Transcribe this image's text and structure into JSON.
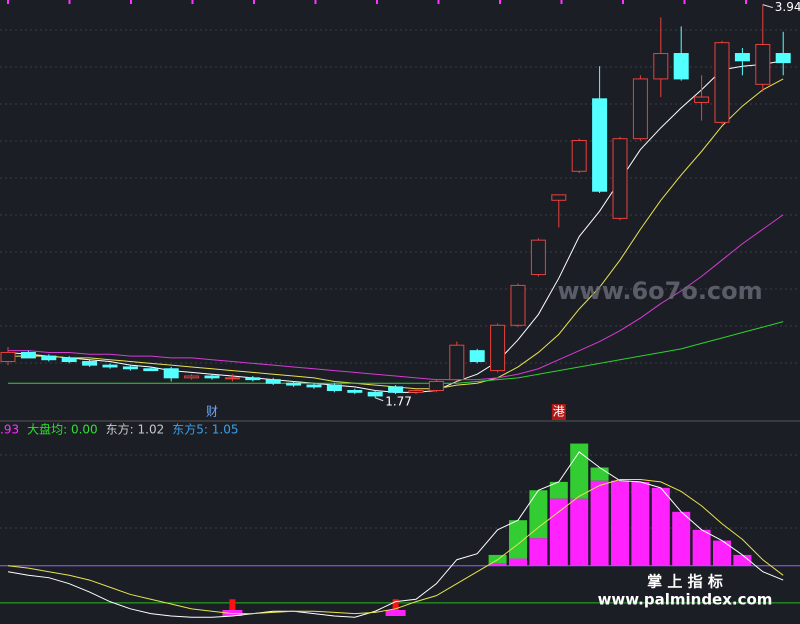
{
  "chart_data": [
    {
      "type": "candlestick",
      "categories": [
        null,
        null,
        null,
        null,
        null,
        null,
        null,
        null,
        null,
        null,
        "财",
        null,
        null,
        null,
        null,
        null,
        null,
        null,
        null,
        null,
        null,
        null,
        null,
        null,
        null,
        null,
        null,
        "港",
        null,
        null,
        null,
        null,
        null,
        null,
        null,
        null,
        null,
        null,
        null
      ],
      "open": [
        1.97,
        2.02,
        2.0,
        1.99,
        1.97,
        1.95,
        1.94,
        1.93,
        1.93,
        1.88,
        1.89,
        1.88,
        1.88,
        1.87,
        1.85,
        1.84,
        1.84,
        1.81,
        1.8,
        1.83,
        1.8,
        1.81,
        1.87,
        2.03,
        1.92,
        2.17,
        2.45,
        2.86,
        3.02,
        3.42,
        2.76,
        3.2,
        3.53,
        3.67,
        3.4,
        3.29,
        3.67,
        3.5,
        3.67
      ],
      "high": [
        2.05,
        2.03,
        2.01,
        2.0,
        1.98,
        1.96,
        1.95,
        1.94,
        1.94,
        1.9,
        1.9,
        1.9,
        1.89,
        1.88,
        1.86,
        1.85,
        1.85,
        1.82,
        1.81,
        1.84,
        1.82,
        1.87,
        2.08,
        2.04,
        2.18,
        2.4,
        2.65,
        2.89,
        3.2,
        3.6,
        3.21,
        3.55,
        3.87,
        3.82,
        3.55,
        3.74,
        3.7,
        3.94,
        3.79
      ],
      "low": [
        1.95,
        1.99,
        1.97,
        1.96,
        1.94,
        1.93,
        1.92,
        1.92,
        1.86,
        1.87,
        1.87,
        1.86,
        1.86,
        1.84,
        1.83,
        1.82,
        1.8,
        1.79,
        1.77,
        1.79,
        1.79,
        1.8,
        1.86,
        1.96,
        1.91,
        2.16,
        2.44,
        2.71,
        3.01,
        2.9,
        2.75,
        3.19,
        3.43,
        3.52,
        3.3,
        3.28,
        3.55,
        3.46,
        3.55
      ],
      "close": [
        2.02,
        1.99,
        1.98,
        1.97,
        1.95,
        1.94,
        1.93,
        1.92,
        1.88,
        1.89,
        1.88,
        1.88,
        1.87,
        1.85,
        1.84,
        1.83,
        1.81,
        1.8,
        1.78,
        1.8,
        1.81,
        1.86,
        2.06,
        1.97,
        2.17,
        2.39,
        2.64,
        2.89,
        3.19,
        2.91,
        3.2,
        3.53,
        3.67,
        3.53,
        3.43,
        3.73,
        3.63,
        3.72,
        3.62
      ],
      "up_color": "#e8413c",
      "down_color": "#54ffff",
      "ylim": [
        1.73,
        3.96
      ],
      "grid": true,
      "max_label": 3.94,
      "min_label": 1.77,
      "series": [
        {
          "color": "#ffffff",
          "values": [
            2.02,
            2.01,
            2.0,
            1.99,
            1.98,
            1.97,
            1.95,
            1.94,
            1.92,
            1.91,
            1.9,
            1.89,
            1.88,
            1.87,
            1.86,
            1.85,
            1.84,
            1.83,
            1.81,
            1.8,
            1.8,
            1.81,
            1.86,
            1.9,
            1.97,
            2.09,
            2.23,
            2.43,
            2.66,
            2.8,
            2.97,
            3.14,
            3.26,
            3.37,
            3.47,
            3.58,
            3.6,
            3.61,
            3.63
          ]
        },
        {
          "color": "#e6e34f",
          "values": [
            2.0,
            2.0,
            2.0,
            1.99,
            1.99,
            1.98,
            1.97,
            1.96,
            1.95,
            1.94,
            1.93,
            1.92,
            1.91,
            1.9,
            1.89,
            1.88,
            1.86,
            1.85,
            1.84,
            1.83,
            1.82,
            1.82,
            1.84,
            1.85,
            1.88,
            1.94,
            2.02,
            2.12,
            2.26,
            2.38,
            2.53,
            2.7,
            2.86,
            3.0,
            3.13,
            3.27,
            3.38,
            3.47,
            3.53
          ]
        },
        {
          "color": "#d43cd4",
          "values": [
            2.03,
            2.03,
            2.02,
            2.02,
            2.01,
            2.01,
            2.0,
            2.0,
            1.99,
            1.99,
            1.98,
            1.97,
            1.96,
            1.95,
            1.94,
            1.93,
            1.92,
            1.91,
            1.9,
            1.89,
            1.88,
            1.87,
            1.87,
            1.87,
            1.88,
            1.9,
            1.93,
            1.98,
            2.03,
            2.08,
            2.14,
            2.21,
            2.29,
            2.36,
            2.44,
            2.53,
            2.62,
            2.7,
            2.78
          ]
        },
        {
          "color": "#2ed02e",
          "values": [
            1.85,
            1.85,
            1.85,
            1.85,
            1.85,
            1.85,
            1.85,
            1.85,
            1.85,
            1.85,
            1.85,
            1.85,
            1.85,
            1.85,
            1.85,
            1.85,
            1.85,
            1.85,
            1.85,
            1.85,
            1.85,
            1.85,
            1.85,
            1.86,
            1.87,
            1.88,
            1.9,
            1.92,
            1.94,
            1.96,
            1.98,
            2.0,
            2.02,
            2.04,
            2.07,
            2.1,
            2.13,
            2.16,
            2.19
          ]
        }
      ]
    },
    {
      "type": "bar",
      "legend": [
        {
          "label": ".93",
          "color": "#ff33ff"
        },
        {
          "label": "大盘均: 0.00",
          "color": "#33dd33"
        },
        {
          "label": "东方: 1.02",
          "color": "#c8c8c8"
        },
        {
          "label": "东方5: 1.05",
          "color": "#3aa0e8"
        }
      ],
      "ylim": [
        -0.47,
        1.2
      ],
      "grid": true,
      "reference_lines": [
        {
          "value": 0,
          "color": "#9a5cff"
        },
        {
          "value": -0.31,
          "color": "#22bb22"
        }
      ],
      "series": [
        {
          "color": "#ff22ff",
          "values": [
            null,
            null,
            null,
            null,
            null,
            null,
            null,
            null,
            null,
            null,
            null,
            null,
            null,
            null,
            null,
            null,
            null,
            null,
            null,
            null,
            null,
            null,
            null,
            null,
            0.02,
            0.06,
            0.23,
            0.56,
            0.56,
            0.71,
            0.71,
            0.7,
            0.65,
            0.45,
            0.3,
            0.21,
            0.09,
            null,
            null
          ]
        },
        {
          "color": "#33cc33",
          "values": [
            null,
            null,
            null,
            null,
            null,
            null,
            null,
            null,
            null,
            null,
            null,
            null,
            null,
            null,
            null,
            null,
            null,
            null,
            null,
            null,
            null,
            null,
            null,
            null,
            0.07,
            0.32,
            0.4,
            0.14,
            0.46,
            0.11,
            null,
            null,
            null,
            null,
            null,
            null,
            null,
            null,
            null
          ]
        }
      ],
      "signals": {
        "color": "#ff1111",
        "values": [
          null,
          null,
          null,
          null,
          null,
          null,
          null,
          null,
          null,
          null,
          null,
          -0.28,
          null,
          null,
          null,
          null,
          null,
          null,
          null,
          -0.28,
          null,
          null,
          null,
          null,
          null,
          null,
          null,
          null,
          null,
          null,
          null,
          null,
          null,
          null,
          null,
          null,
          null,
          null,
          null
        ]
      },
      "lines": [
        {
          "color": "#ffffff",
          "values": [
            -0.05,
            -0.08,
            -0.1,
            -0.15,
            -0.22,
            -0.3,
            -0.36,
            -0.4,
            -0.42,
            -0.43,
            -0.43,
            -0.42,
            -0.4,
            -0.38,
            -0.38,
            -0.4,
            -0.42,
            -0.43,
            -0.38,
            -0.3,
            -0.28,
            -0.15,
            0.05,
            0.1,
            0.3,
            0.38,
            0.63,
            0.7,
            0.95,
            0.82,
            0.71,
            0.7,
            0.65,
            0.45,
            0.3,
            0.21,
            0.09,
            -0.05,
            -0.12
          ]
        },
        {
          "color": "#e6e34f",
          "values": [
            0.0,
            -0.02,
            -0.05,
            -0.08,
            -0.12,
            -0.18,
            -0.24,
            -0.28,
            -0.32,
            -0.36,
            -0.38,
            -0.4,
            -0.4,
            -0.39,
            -0.38,
            -0.38,
            -0.39,
            -0.4,
            -0.39,
            -0.36,
            -0.3,
            -0.25,
            -0.15,
            -0.05,
            0.05,
            0.18,
            0.32,
            0.45,
            0.58,
            0.67,
            0.72,
            0.72,
            0.7,
            0.62,
            0.5,
            0.35,
            0.22,
            0.05,
            -0.08
          ]
        }
      ]
    }
  ],
  "watermarks": {
    "site1": "www.6o7o.com",
    "brand": "掌 上 指 标",
    "site2": "www.palmindex.com"
  }
}
